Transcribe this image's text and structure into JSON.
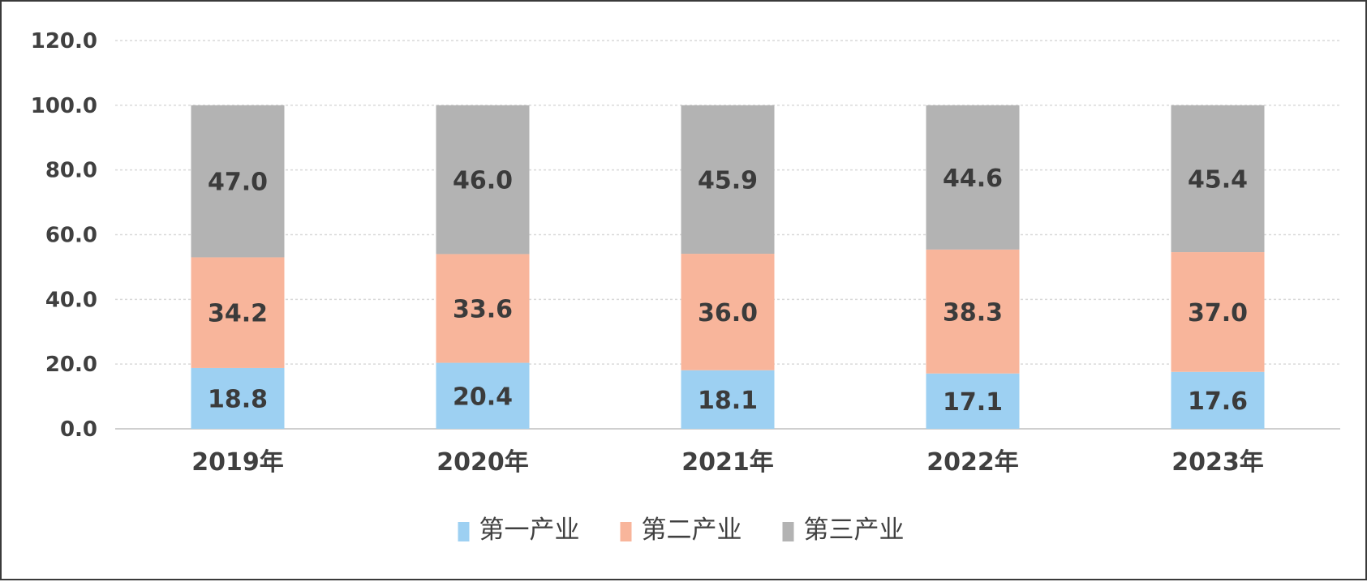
{
  "chart_data": {
    "type": "bar",
    "stacked": true,
    "title": "",
    "xlabel": "",
    "ylabel": "",
    "categories": [
      "2019年",
      "2020年",
      "2021年",
      "2022年",
      "2023年"
    ],
    "series": [
      {
        "name": "第一产业",
        "color": "#9dd0f2",
        "values": [
          18.8,
          20.4,
          18.1,
          17.1,
          17.6
        ]
      },
      {
        "name": "第二产业",
        "color": "#f8b59b",
        "values": [
          34.2,
          33.6,
          36.0,
          38.3,
          37.0
        ]
      },
      {
        "name": "第三产业",
        "color": "#b3b3b3",
        "values": [
          47.0,
          46.0,
          45.9,
          44.6,
          45.4
        ]
      }
    ],
    "ylim": [
      0,
      120
    ],
    "yticks": [
      0,
      20,
      40,
      60,
      80,
      100,
      120
    ],
    "ytick_labels": [
      "0.0",
      "20.0",
      "40.0",
      "60.0",
      "80.0",
      "100.0",
      "120.0"
    ],
    "grid": true,
    "legend": "bottom-center",
    "data_labels": true
  }
}
